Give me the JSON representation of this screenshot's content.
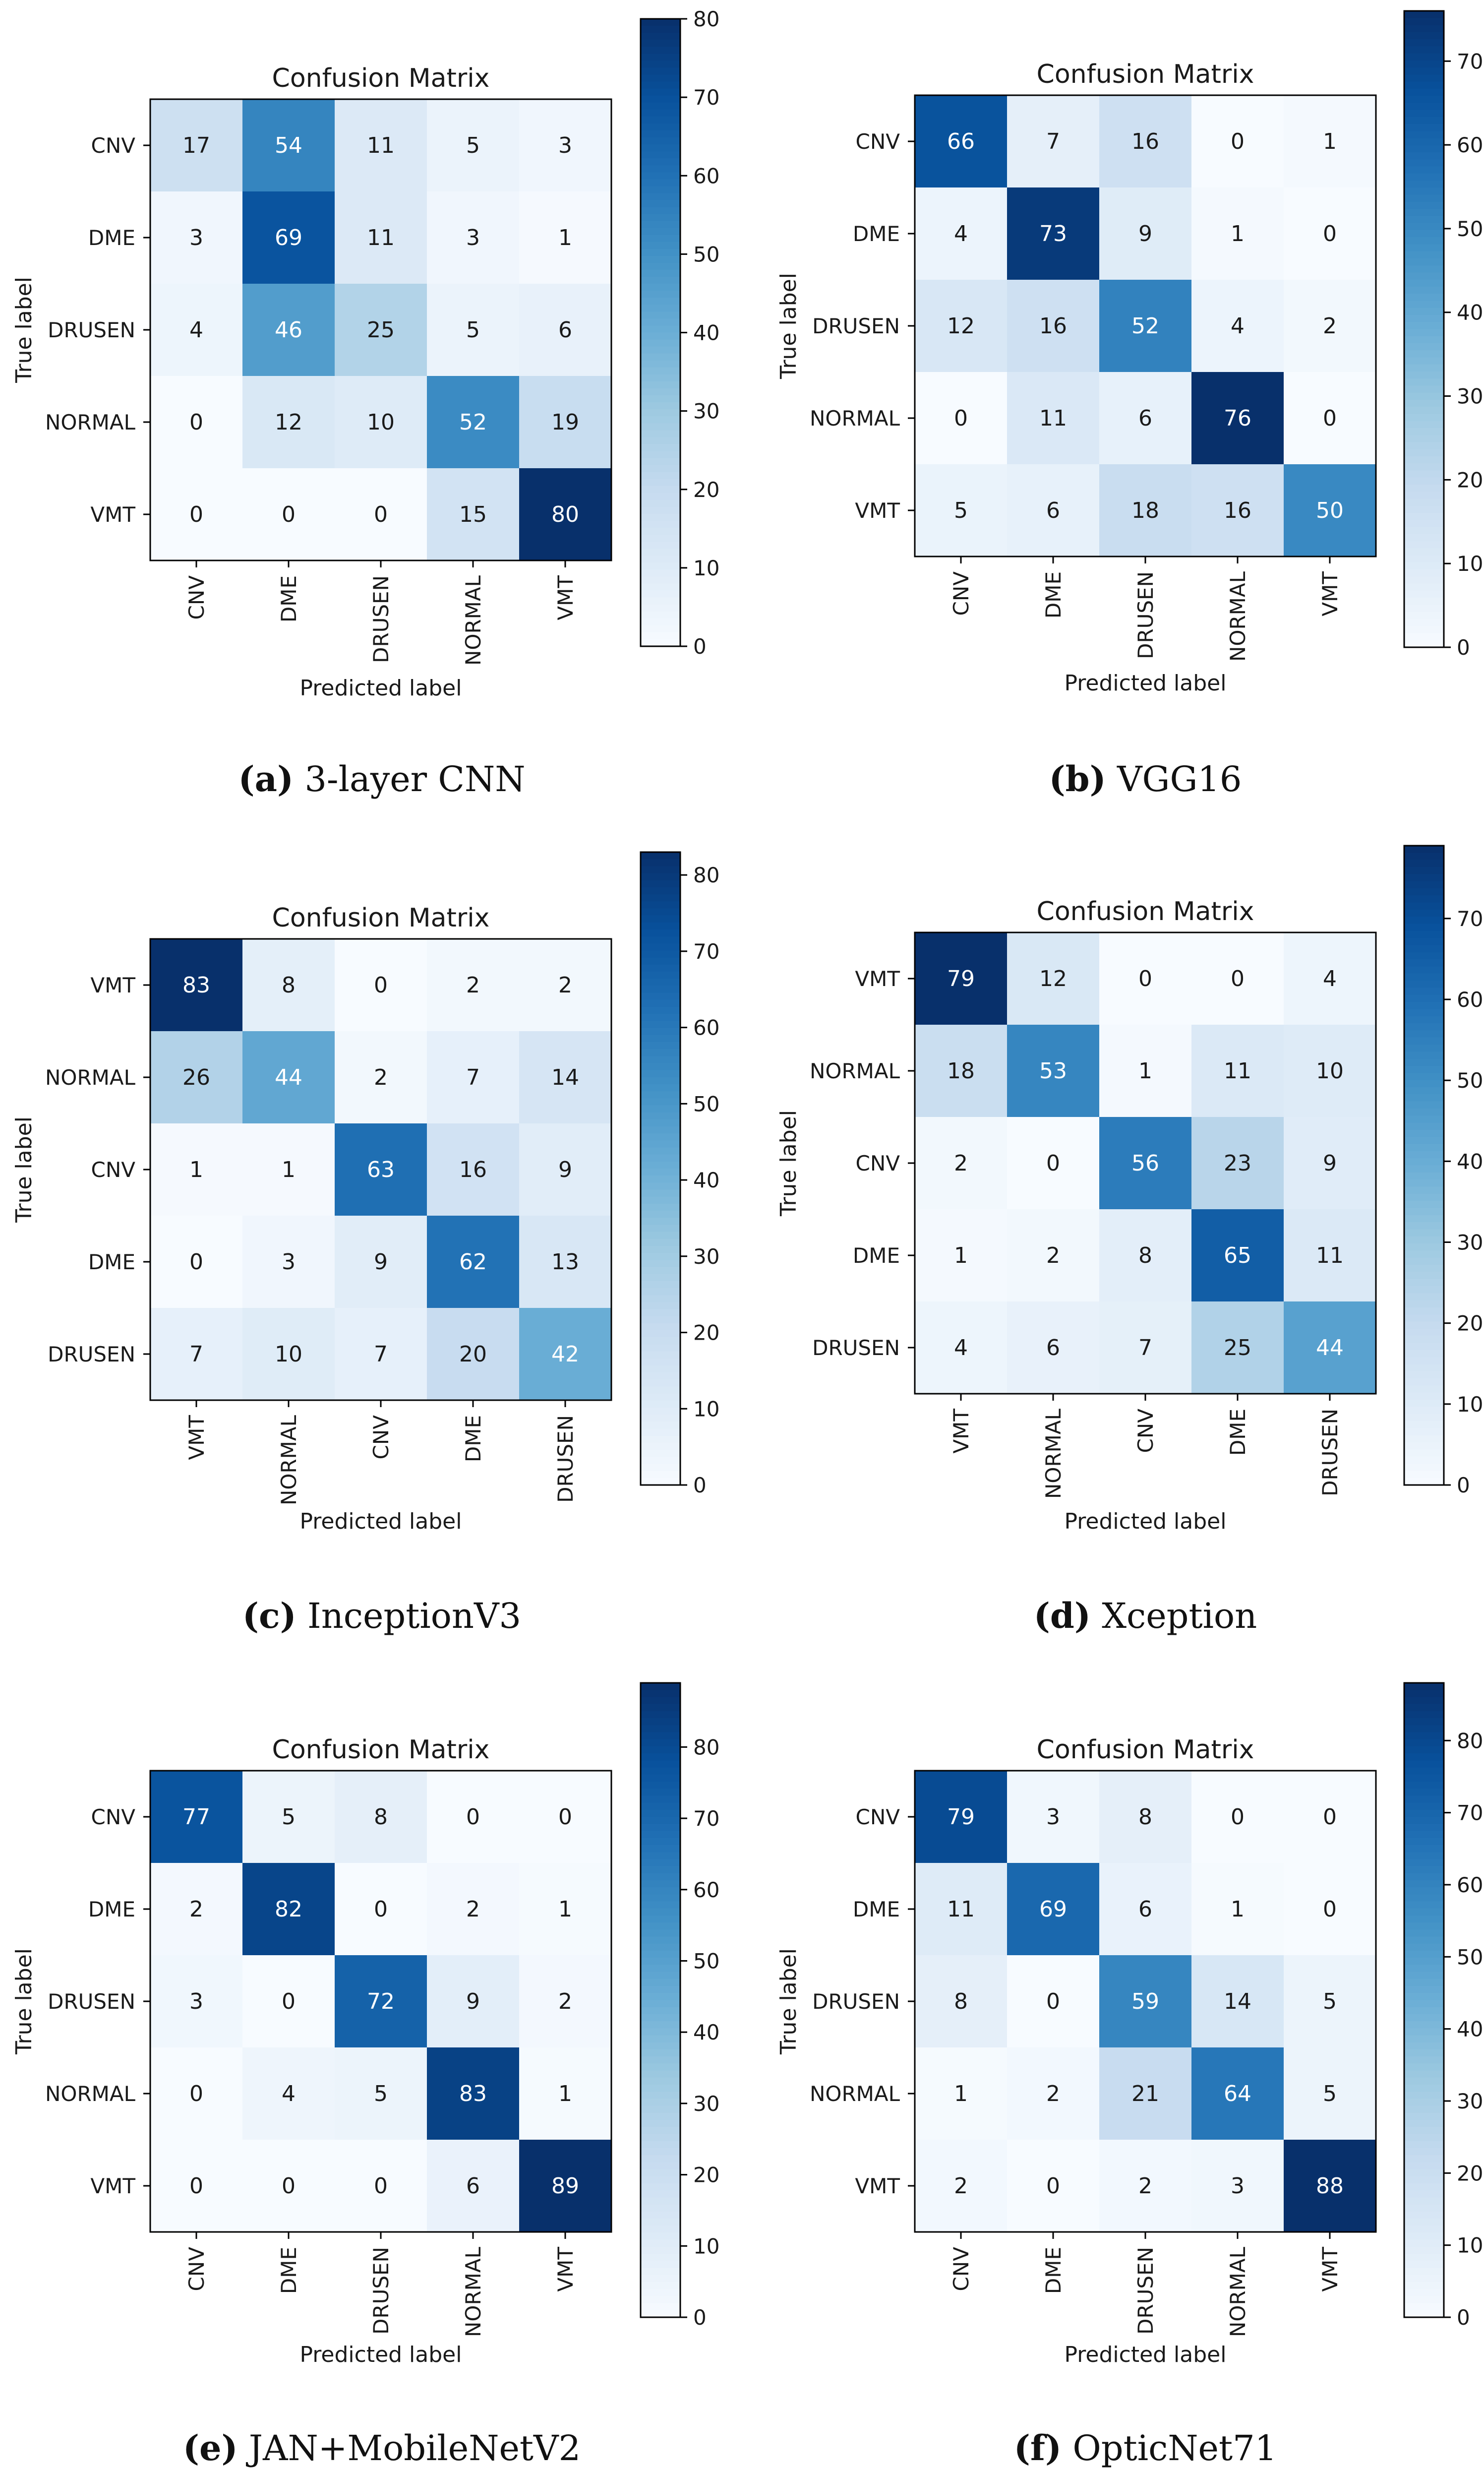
{
  "figure": {
    "colormap": {
      "name": "Blues",
      "stops": [
        "#f7fbff",
        "#deebf7",
        "#c6dbef",
        "#9ecae1",
        "#6baed6",
        "#4292c6",
        "#2171b5",
        "#08519c",
        "#08306b"
      ]
    },
    "text_dark": "#1a1a1a",
    "text_light": "#ffffff"
  },
  "chart_data": [
    {
      "type": "heatmap",
      "title": "Confusion Matrix",
      "xlabel": "Predicted label",
      "ylabel": "True label",
      "caption_letter": "(a)",
      "caption_text": "3-layer CNN",
      "rows": [
        "CNV",
        "DME",
        "DRUSEN",
        "NORMAL",
        "VMT"
      ],
      "cols": [
        "CNV",
        "DME",
        "DRUSEN",
        "NORMAL",
        "VMT"
      ],
      "values": [
        [
          17,
          54,
          11,
          5,
          3
        ],
        [
          3,
          69,
          11,
          3,
          1
        ],
        [
          4,
          46,
          25,
          5,
          6
        ],
        [
          0,
          12,
          10,
          52,
          19
        ],
        [
          0,
          0,
          0,
          15,
          80
        ]
      ],
      "vmin": 0,
      "vmax": 80,
      "colorbar_ticks": [
        0,
        10,
        20,
        30,
        40,
        50,
        60,
        70,
        80
      ]
    },
    {
      "type": "heatmap",
      "title": "Confusion Matrix",
      "xlabel": "Predicted label",
      "ylabel": "True label",
      "caption_letter": "(b)",
      "caption_text": "VGG16",
      "rows": [
        "CNV",
        "DME",
        "DRUSEN",
        "NORMAL",
        "VMT"
      ],
      "cols": [
        "CNV",
        "DME",
        "DRUSEN",
        "NORMAL",
        "VMT"
      ],
      "values": [
        [
          66,
          7,
          16,
          0,
          1
        ],
        [
          4,
          73,
          9,
          1,
          0
        ],
        [
          12,
          16,
          52,
          4,
          2
        ],
        [
          0,
          11,
          6,
          76,
          0
        ],
        [
          5,
          6,
          18,
          16,
          50
        ]
      ],
      "vmin": 0,
      "vmax": 76,
      "colorbar_ticks": [
        0,
        10,
        20,
        30,
        40,
        50,
        60,
        70
      ]
    },
    {
      "type": "heatmap",
      "title": "Confusion Matrix",
      "xlabel": "Predicted label",
      "ylabel": "True label",
      "caption_letter": "(c)",
      "caption_text": "InceptionV3",
      "rows": [
        "VMT",
        "NORMAL",
        "CNV",
        "DME",
        "DRUSEN"
      ],
      "cols": [
        "VMT",
        "NORMAL",
        "CNV",
        "DME",
        "DRUSEN"
      ],
      "values": [
        [
          83,
          8,
          0,
          2,
          2
        ],
        [
          26,
          44,
          2,
          7,
          14
        ],
        [
          1,
          1,
          63,
          16,
          9
        ],
        [
          0,
          3,
          9,
          62,
          13
        ],
        [
          7,
          10,
          7,
          20,
          42
        ]
      ],
      "vmin": 0,
      "vmax": 83,
      "colorbar_ticks": [
        0,
        10,
        20,
        30,
        40,
        50,
        60,
        70,
        80
      ]
    },
    {
      "type": "heatmap",
      "title": "Confusion Matrix",
      "xlabel": "Predicted label",
      "ylabel": "True label",
      "caption_letter": "(d)",
      "caption_text": "Xception",
      "rows": [
        "VMT",
        "NORMAL",
        "CNV",
        "DME",
        "DRUSEN"
      ],
      "cols": [
        "VMT",
        "NORMAL",
        "CNV",
        "DME",
        "DRUSEN"
      ],
      "values": [
        [
          79,
          12,
          0,
          0,
          4
        ],
        [
          18,
          53,
          1,
          11,
          10
        ],
        [
          2,
          0,
          56,
          23,
          9
        ],
        [
          1,
          2,
          8,
          65,
          11
        ],
        [
          4,
          6,
          7,
          25,
          44
        ]
      ],
      "vmin": 0,
      "vmax": 79,
      "colorbar_ticks": [
        0,
        10,
        20,
        30,
        40,
        50,
        60,
        70
      ]
    },
    {
      "type": "heatmap",
      "title": "Confusion Matrix",
      "xlabel": "Predicted label",
      "ylabel": "True label",
      "caption_letter": "(e)",
      "caption_text": "JAN+MobileNetV2",
      "rows": [
        "CNV",
        "DME",
        "DRUSEN",
        "NORMAL",
        "VMT"
      ],
      "cols": [
        "CNV",
        "DME",
        "DRUSEN",
        "NORMAL",
        "VMT"
      ],
      "values": [
        [
          77,
          5,
          8,
          0,
          0
        ],
        [
          2,
          82,
          0,
          2,
          1
        ],
        [
          3,
          0,
          72,
          9,
          2
        ],
        [
          0,
          4,
          5,
          83,
          1
        ],
        [
          0,
          0,
          0,
          6,
          89
        ]
      ],
      "vmin": 0,
      "vmax": 89,
      "colorbar_ticks": [
        0,
        10,
        20,
        30,
        40,
        50,
        60,
        70,
        80
      ]
    },
    {
      "type": "heatmap",
      "title": "Confusion Matrix",
      "xlabel": "Predicted label",
      "ylabel": "True label",
      "caption_letter": "(f)",
      "caption_text": "OpticNet71",
      "rows": [
        "CNV",
        "DME",
        "DRUSEN",
        "NORMAL",
        "VMT"
      ],
      "cols": [
        "CNV",
        "DME",
        "DRUSEN",
        "NORMAL",
        "VMT"
      ],
      "values": [
        [
          79,
          3,
          8,
          0,
          0
        ],
        [
          11,
          69,
          6,
          1,
          0
        ],
        [
          8,
          0,
          59,
          14,
          5
        ],
        [
          1,
          2,
          21,
          64,
          5
        ],
        [
          2,
          0,
          2,
          3,
          88
        ]
      ],
      "vmin": 0,
      "vmax": 88,
      "colorbar_ticks": [
        0,
        10,
        20,
        30,
        40,
        50,
        60,
        70,
        80
      ]
    }
  ]
}
